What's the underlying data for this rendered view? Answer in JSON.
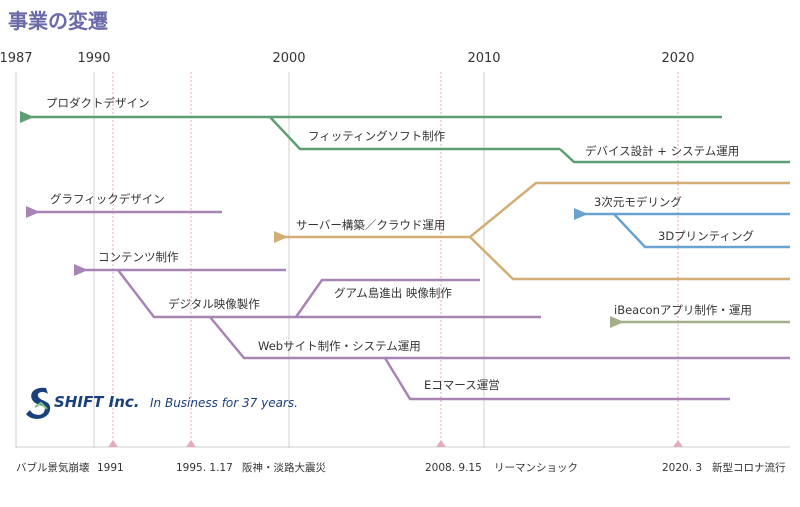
{
  "title": "事業の変遷",
  "colors": {
    "green": "#5f9e73",
    "purple": "#a784b3",
    "gold": "#d2ae76",
    "blue": "#6aa2cf",
    "olive": "#a3ae8c",
    "grid": "#cfcfcf",
    "event": "#e6aabd"
  },
  "years": [
    {
      "label": "1987",
      "year": 1987
    },
    {
      "label": "1990",
      "year": 1990
    },
    {
      "label": "2000",
      "year": 2000
    },
    {
      "label": "2010",
      "year": 2010
    },
    {
      "label": "2020",
      "year": 2020
    }
  ],
  "businesses": {
    "product_design": "プロダクトデザイン",
    "fitting_software": "フィッティングソフト制作",
    "device_design": "デバイス設計 + システム運用",
    "graphic_design": "グラフィックデザイン",
    "server_cloud": "サーバー構築／クラウド運用",
    "modeling_3d": "3次元モデリング",
    "printing_3d": "3Dプリンティング",
    "contents": "コンテンツ制作",
    "guam_video": "グアム島進出 映像制作",
    "digital_video": "デジタル映像製作",
    "ibeacon": "iBeaconアプリ制作・運用",
    "web_system": "Webサイト制作・システム運用",
    "ecommerce": "Eコマース運営"
  },
  "company": {
    "logo_name": "SHIFT Inc.",
    "tagline": "In Business for 37 years."
  },
  "events": [
    {
      "label": "バブル景気崩壊",
      "year_label": "1991",
      "year": 1991
    },
    {
      "label": "阪神・淡路大震災",
      "year_label": "1995. 1.17",
      "year": 1995
    },
    {
      "label": "リーマンショック",
      "year_label": "2008. 9.15",
      "year": 2008
    },
    {
      "label": "新型コロナ流行",
      "year_label": "2020. 3",
      "year": 2020
    }
  ]
}
